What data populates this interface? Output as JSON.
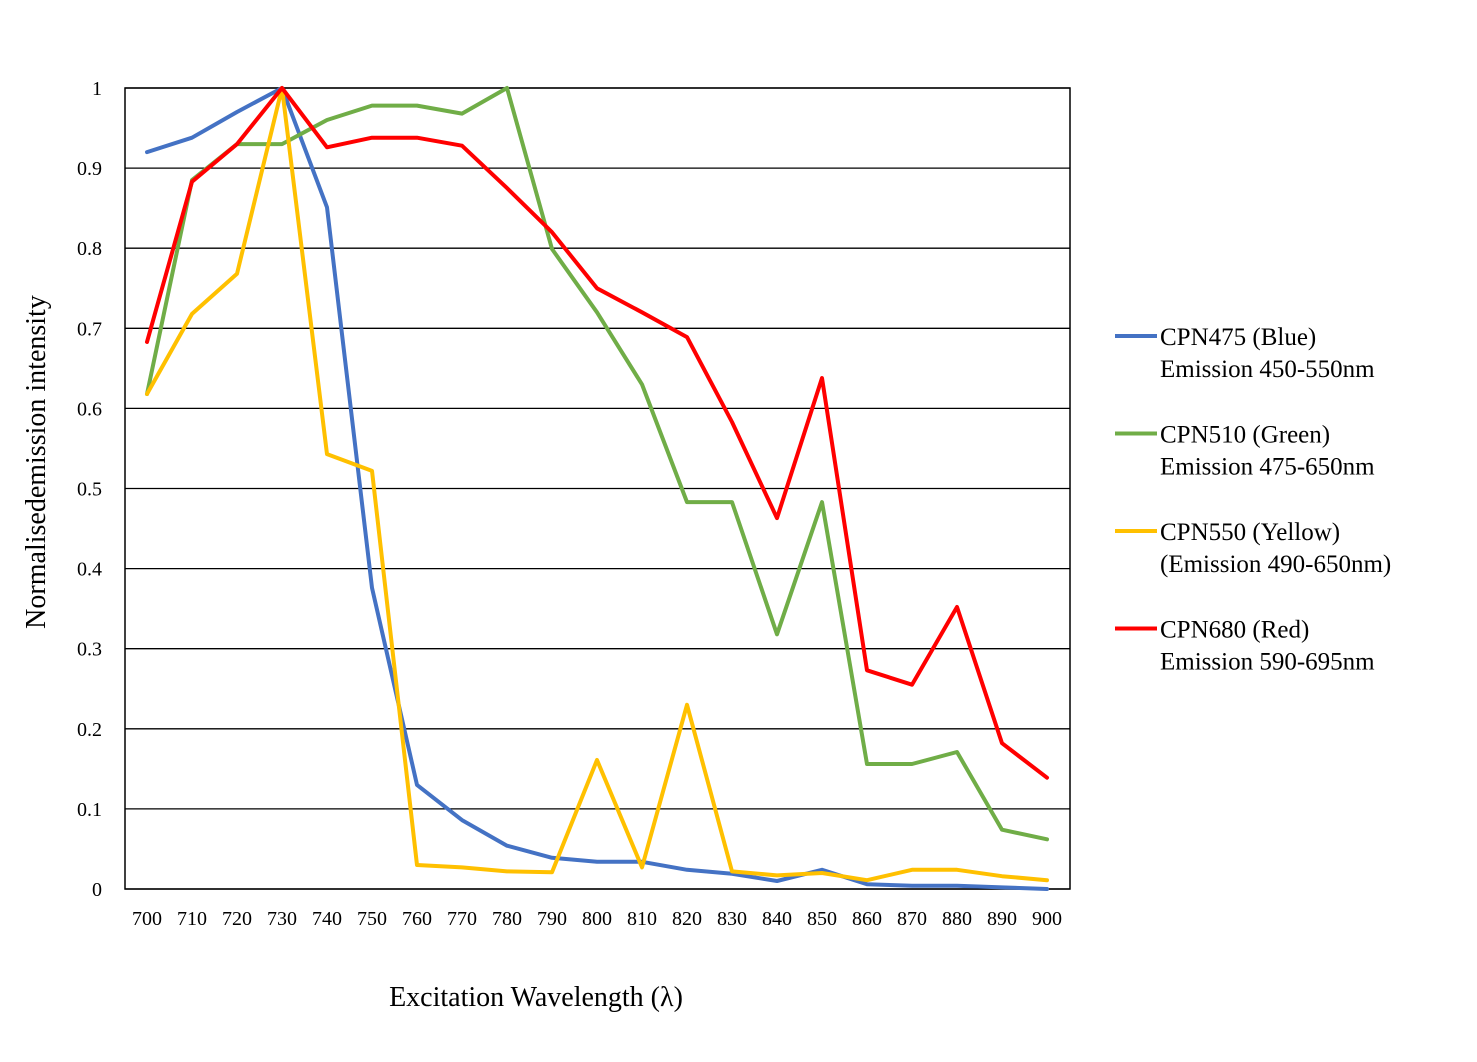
{
  "chart_data": {
    "type": "line",
    "title": "",
    "xlabel": "Excitation Wavelength (λ)",
    "ylabel": "Normalisedemission intensity",
    "x": [
      700,
      710,
      720,
      730,
      740,
      750,
      760,
      770,
      780,
      790,
      800,
      810,
      820,
      830,
      840,
      850,
      860,
      870,
      880,
      890,
      900
    ],
    "x_tick_labels": [
      "700",
      "710",
      "720",
      "730",
      "740",
      "750",
      "760",
      "770",
      "780",
      "790",
      "800",
      "810",
      "820",
      "830",
      "840",
      "850",
      "860",
      "870",
      "880",
      "890",
      "900"
    ],
    "ylim": [
      0,
      1
    ],
    "y_tick_labels": [
      "0",
      "0.1",
      "0.2",
      "0.3",
      "0.4",
      "0.5",
      "0.6",
      "0.7",
      "0.8",
      "0.9",
      "1"
    ],
    "y_ticks": [
      0,
      0.1,
      0.2,
      0.3,
      0.4,
      0.5,
      0.6,
      0.7,
      0.8,
      0.9,
      1
    ],
    "grid": true,
    "legend_position": "right",
    "series": [
      {
        "name": "CPN475 (Blue)",
        "name_line2": "Emission 450-550nm",
        "color": "#4472C4",
        "values": [
          0.92,
          0.938,
          0.97,
          1.0,
          0.851,
          0.376,
          0.13,
          0.086,
          0.054,
          0.039,
          0.034,
          0.034,
          0.024,
          0.019,
          0.01,
          0.024,
          0.006,
          0.004,
          0.004,
          0.002,
          0.0
        ]
      },
      {
        "name": "CPN510 (Green)",
        "name_line2": "Emission 475-650nm",
        "color": "#70AD47",
        "values": [
          0.618,
          0.885,
          0.93,
          0.93,
          0.96,
          0.978,
          0.978,
          0.968,
          1.0,
          0.799,
          0.72,
          0.63,
          0.483,
          0.483,
          0.318,
          0.483,
          0.156,
          0.156,
          0.171,
          0.074,
          0.062
        ]
      },
      {
        "name": "CPN550 (Yellow)",
        "name_line2": "(Emission 490-650nm)",
        "color": "#FFC000",
        "values": [
          0.618,
          0.718,
          0.768,
          1.0,
          0.543,
          0.522,
          0.03,
          0.027,
          0.022,
          0.021,
          0.161,
          0.027,
          0.23,
          0.022,
          0.017,
          0.02,
          0.011,
          0.024,
          0.024,
          0.016,
          0.011
        ]
      },
      {
        "name": "CPN680 (Red)",
        "name_line2": "Emission 590-695nm",
        "color": "#FF0000",
        "values": [
          0.683,
          0.883,
          0.93,
          1.0,
          0.926,
          0.938,
          0.938,
          0.928,
          0.875,
          0.82,
          0.75,
          0.72,
          0.689,
          0.583,
          0.463,
          0.638,
          0.273,
          0.255,
          0.352,
          0.182,
          0.139
        ]
      }
    ]
  }
}
